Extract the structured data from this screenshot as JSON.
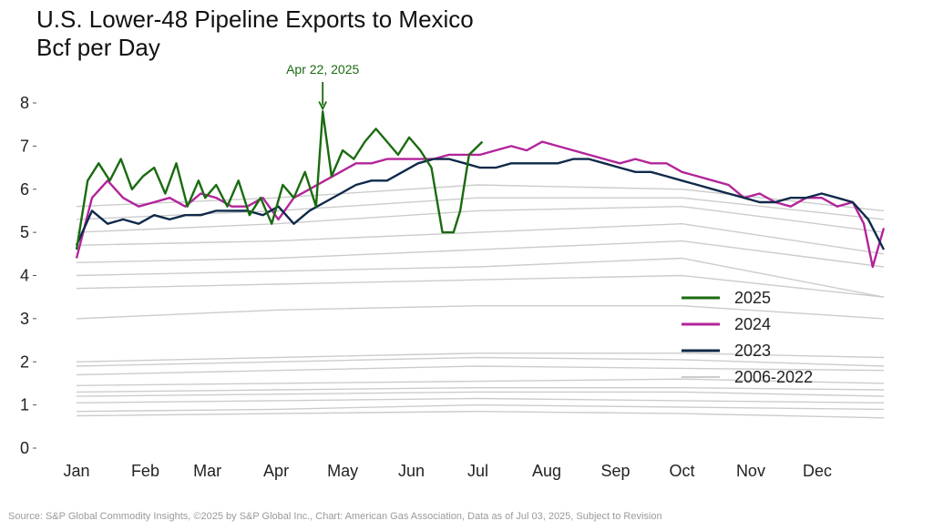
{
  "title_line1": "U.S. Lower-48 Pipeline Exports to Mexico",
  "title_line2": "Bcf per Day",
  "source": "Source: S&P Global Commodity Insights, ©2025 by S&P Global Inc., Chart: American Gas Association, Data as of Jul 03, 2025, Subject to Revision",
  "chart_data": {
    "type": "line",
    "title": "U.S. Lower-48 Pipeline Exports to Mexico",
    "ylabel": "Bcf per Day",
    "ylim": [
      0,
      8
    ],
    "yticks": [
      0,
      1,
      2,
      3,
      4,
      5,
      6,
      7,
      8
    ],
    "xticks": [
      "Jan",
      "Feb",
      "Mar",
      "Apr",
      "May",
      "Jun",
      "Jul",
      "Aug",
      "Sep",
      "Oct",
      "Nov",
      "Dec"
    ],
    "xrange_day_of_year": [
      1,
      365
    ],
    "grid": false,
    "legend": "center-right",
    "annotation": {
      "label": "Apr 22, 2025",
      "x": "Apr 22",
      "y": 7.8,
      "color": "#1a6b10"
    },
    "series": [
      {
        "name": "2025",
        "color": "#1a6b10",
        "points": [
          [
            1,
            4.6
          ],
          [
            6,
            6.2
          ],
          [
            11,
            6.6
          ],
          [
            16,
            6.2
          ],
          [
            21,
            6.7
          ],
          [
            26,
            6.0
          ],
          [
            31,
            6.3
          ],
          [
            36,
            6.5
          ],
          [
            41,
            5.9
          ],
          [
            46,
            6.6
          ],
          [
            51,
            5.6
          ],
          [
            56,
            6.2
          ],
          [
            59,
            5.8
          ],
          [
            64,
            6.1
          ],
          [
            69,
            5.6
          ],
          [
            74,
            6.2
          ],
          [
            79,
            5.4
          ],
          [
            84,
            5.8
          ],
          [
            89,
            5.2
          ],
          [
            94,
            6.1
          ],
          [
            99,
            5.8
          ],
          [
            104,
            6.4
          ],
          [
            109,
            5.6
          ],
          [
            112,
            7.8
          ],
          [
            116,
            6.3
          ],
          [
            121,
            6.9
          ],
          [
            126,
            6.7
          ],
          [
            131,
            7.1
          ],
          [
            136,
            7.4
          ],
          [
            141,
            7.1
          ],
          [
            146,
            6.8
          ],
          [
            151,
            7.2
          ],
          [
            156,
            6.9
          ],
          [
            161,
            6.5
          ],
          [
            166,
            5.0
          ],
          [
            171,
            5.0
          ],
          [
            174,
            5.5
          ],
          [
            178,
            6.8
          ],
          [
            184,
            7.1
          ]
        ]
      },
      {
        "name": "2024",
        "color": "#b3249a",
        "points": [
          [
            1,
            4.4
          ],
          [
            8,
            5.8
          ],
          [
            15,
            6.2
          ],
          [
            22,
            5.8
          ],
          [
            29,
            5.6
          ],
          [
            36,
            5.7
          ],
          [
            43,
            5.8
          ],
          [
            50,
            5.6
          ],
          [
            57,
            5.9
          ],
          [
            64,
            5.8
          ],
          [
            71,
            5.6
          ],
          [
            78,
            5.6
          ],
          [
            85,
            5.8
          ],
          [
            92,
            5.3
          ],
          [
            99,
            5.8
          ],
          [
            106,
            6.0
          ],
          [
            113,
            6.2
          ],
          [
            120,
            6.4
          ],
          [
            127,
            6.6
          ],
          [
            134,
            6.6
          ],
          [
            141,
            6.7
          ],
          [
            148,
            6.7
          ],
          [
            155,
            6.7
          ],
          [
            162,
            6.7
          ],
          [
            169,
            6.8
          ],
          [
            176,
            6.8
          ],
          [
            183,
            6.8
          ],
          [
            190,
            6.9
          ],
          [
            197,
            7.0
          ],
          [
            204,
            6.9
          ],
          [
            211,
            7.1
          ],
          [
            218,
            7.0
          ],
          [
            225,
            6.9
          ],
          [
            232,
            6.8
          ],
          [
            239,
            6.7
          ],
          [
            246,
            6.6
          ],
          [
            253,
            6.7
          ],
          [
            260,
            6.6
          ],
          [
            267,
            6.6
          ],
          [
            274,
            6.4
          ],
          [
            281,
            6.3
          ],
          [
            288,
            6.2
          ],
          [
            295,
            6.1
          ],
          [
            302,
            5.8
          ],
          [
            309,
            5.9
          ],
          [
            316,
            5.7
          ],
          [
            323,
            5.6
          ],
          [
            330,
            5.8
          ],
          [
            337,
            5.8
          ],
          [
            344,
            5.6
          ],
          [
            351,
            5.7
          ],
          [
            356,
            5.2
          ],
          [
            360,
            4.2
          ],
          [
            365,
            5.1
          ]
        ]
      },
      {
        "name": "2023",
        "color": "#0f2a4a",
        "points": [
          [
            1,
            4.7
          ],
          [
            8,
            5.5
          ],
          [
            15,
            5.2
          ],
          [
            22,
            5.3
          ],
          [
            29,
            5.2
          ],
          [
            36,
            5.4
          ],
          [
            43,
            5.3
          ],
          [
            50,
            5.4
          ],
          [
            57,
            5.4
          ],
          [
            64,
            5.5
          ],
          [
            71,
            5.5
          ],
          [
            78,
            5.5
          ],
          [
            85,
            5.4
          ],
          [
            92,
            5.6
          ],
          [
            99,
            5.2
          ],
          [
            106,
            5.5
          ],
          [
            113,
            5.7
          ],
          [
            120,
            5.9
          ],
          [
            127,
            6.1
          ],
          [
            134,
            6.2
          ],
          [
            141,
            6.2
          ],
          [
            148,
            6.4
          ],
          [
            155,
            6.6
          ],
          [
            162,
            6.7
          ],
          [
            169,
            6.7
          ],
          [
            176,
            6.6
          ],
          [
            183,
            6.5
          ],
          [
            190,
            6.5
          ],
          [
            197,
            6.6
          ],
          [
            204,
            6.6
          ],
          [
            211,
            6.6
          ],
          [
            218,
            6.6
          ],
          [
            225,
            6.7
          ],
          [
            232,
            6.7
          ],
          [
            239,
            6.6
          ],
          [
            246,
            6.5
          ],
          [
            253,
            6.4
          ],
          [
            260,
            6.4
          ],
          [
            267,
            6.3
          ],
          [
            274,
            6.2
          ],
          [
            281,
            6.1
          ],
          [
            288,
            6.0
          ],
          [
            295,
            5.9
          ],
          [
            302,
            5.8
          ],
          [
            309,
            5.7
          ],
          [
            316,
            5.7
          ],
          [
            323,
            5.8
          ],
          [
            330,
            5.8
          ],
          [
            337,
            5.9
          ],
          [
            344,
            5.8
          ],
          [
            351,
            5.7
          ],
          [
            358,
            5.3
          ],
          [
            365,
            4.6
          ]
        ]
      },
      {
        "name": "2006-2022",
        "color": "#cccccc",
        "lines": [
          [
            [
              1,
              0.75
            ],
            [
              91,
              0.8
            ],
            [
              182,
              0.85
            ],
            [
              274,
              0.8
            ],
            [
              365,
              0.7
            ]
          ],
          [
            [
              1,
              0.85
            ],
            [
              91,
              0.9
            ],
            [
              182,
              1.0
            ],
            [
              274,
              0.95
            ],
            [
              365,
              0.9
            ]
          ],
          [
            [
              1,
              1.05
            ],
            [
              91,
              1.1
            ],
            [
              182,
              1.15
            ],
            [
              274,
              1.1
            ],
            [
              365,
              1.05
            ]
          ],
          [
            [
              1,
              1.2
            ],
            [
              91,
              1.25
            ],
            [
              182,
              1.3
            ],
            [
              274,
              1.3
            ],
            [
              365,
              1.2
            ]
          ],
          [
            [
              1,
              1.3
            ],
            [
              91,
              1.35
            ],
            [
              182,
              1.4
            ],
            [
              274,
              1.4
            ],
            [
              365,
              1.35
            ]
          ],
          [
            [
              1,
              1.45
            ],
            [
              91,
              1.5
            ],
            [
              182,
              1.55
            ],
            [
              274,
              1.6
            ],
            [
              365,
              1.5
            ]
          ],
          [
            [
              1,
              1.7
            ],
            [
              91,
              1.8
            ],
            [
              182,
              1.9
            ],
            [
              274,
              1.85
            ],
            [
              365,
              1.8
            ]
          ],
          [
            [
              1,
              1.9
            ],
            [
              91,
              2.0
            ],
            [
              182,
              2.1
            ],
            [
              274,
              2.05
            ],
            [
              365,
              1.9
            ]
          ],
          [
            [
              1,
              2.0
            ],
            [
              91,
              2.1
            ],
            [
              182,
              2.2
            ],
            [
              274,
              2.2
            ],
            [
              365,
              2.1
            ]
          ],
          [
            [
              1,
              3.0
            ],
            [
              91,
              3.2
            ],
            [
              182,
              3.3
            ],
            [
              274,
              3.3
            ],
            [
              365,
              3.0
            ]
          ],
          [
            [
              1,
              3.7
            ],
            [
              91,
              3.8
            ],
            [
              182,
              3.9
            ],
            [
              274,
              4.0
            ],
            [
              365,
              3.5
            ]
          ],
          [
            [
              1,
              4.0
            ],
            [
              91,
              4.1
            ],
            [
              182,
              4.2
            ],
            [
              274,
              4.4
            ],
            [
              365,
              3.5
            ]
          ],
          [
            [
              1,
              4.3
            ],
            [
              91,
              4.4
            ],
            [
              182,
              4.6
            ],
            [
              274,
              4.8
            ],
            [
              365,
              4.2
            ]
          ],
          [
            [
              1,
              4.7
            ],
            [
              91,
              4.8
            ],
            [
              182,
              5.0
            ],
            [
              274,
              5.2
            ],
            [
              365,
              4.5
            ]
          ],
          [
            [
              1,
              5.0
            ],
            [
              91,
              5.2
            ],
            [
              182,
              5.5
            ],
            [
              274,
              5.6
            ],
            [
              365,
              5.0
            ]
          ],
          [
            [
              1,
              5.3
            ],
            [
              91,
              5.5
            ],
            [
              182,
              5.8
            ],
            [
              274,
              5.8
            ],
            [
              365,
              5.3
            ]
          ],
          [
            [
              1,
              5.6
            ],
            [
              91,
              5.8
            ],
            [
              182,
              6.1
            ],
            [
              274,
              6.0
            ],
            [
              365,
              5.5
            ]
          ]
        ]
      }
    ]
  }
}
